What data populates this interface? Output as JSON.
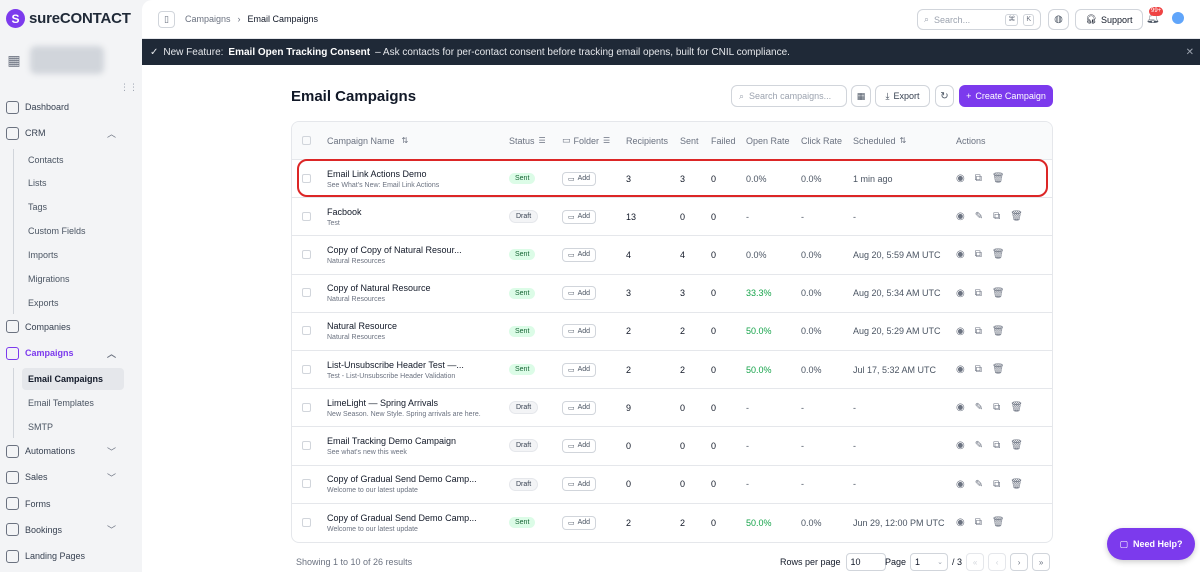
{
  "brand": {
    "logo_letter": "S",
    "name_bold": "sure",
    "name_rest": "CONTACT"
  },
  "nav": {
    "dashboard": "Dashboard",
    "crm": "CRM",
    "crm_items": [
      "Contacts",
      "Lists",
      "Tags",
      "Custom Fields",
      "Imports",
      "Migrations",
      "Exports"
    ],
    "companies": "Companies",
    "campaigns": "Campaigns",
    "campaign_items": [
      "Email Campaigns",
      "Email Templates",
      "SMTP"
    ],
    "automations": "Automations",
    "sales": "Sales",
    "forms": "Forms",
    "bookings": "Bookings",
    "landing_pages": "Landing Pages"
  },
  "topbar": {
    "crumb_1": "Campaigns",
    "crumb_sep": "›",
    "crumb_2": "Email Campaigns",
    "search_placeholder": "Search...",
    "search_key_1": "⌘",
    "search_key_2": "K",
    "support": "Support",
    "notif_badge": "99+"
  },
  "banner": {
    "label": "New Feature:",
    "title": "Email Open Tracking Consent",
    "text": "– Ask contacts for per-contact consent before tracking email opens, built for CNIL compliance."
  },
  "page": {
    "title": "Email Campaigns",
    "search_placeholder": "Search campaigns...",
    "export": "Export",
    "create": "Create Campaign"
  },
  "table": {
    "headers": {
      "name": "Campaign Name",
      "status": "Status",
      "folder": "Folder",
      "recipients": "Recipients",
      "sent": "Sent",
      "failed": "Failed",
      "open_rate": "Open Rate",
      "click_rate": "Click Rate",
      "scheduled": "Scheduled",
      "actions": "Actions"
    },
    "folder_add": "Add",
    "rows": [
      {
        "name": "Email Link Actions Demo",
        "sub": "See What's New: Email Link Actions",
        "status": "Sent",
        "recipients": "3",
        "sent": "3",
        "failed": "0",
        "open": "0.0%",
        "click": "0.0%",
        "scheduled": "1 min ago"
      },
      {
        "name": "Facbook",
        "sub": "Test",
        "status": "Draft",
        "recipients": "13",
        "sent": "0",
        "failed": "0",
        "open": "-",
        "click": "-",
        "scheduled": "-"
      },
      {
        "name": "Copy of Copy of Natural Resour...",
        "sub": "Natural Resources",
        "status": "Sent",
        "recipients": "4",
        "sent": "4",
        "failed": "0",
        "open": "0.0%",
        "click": "0.0%",
        "scheduled": "Aug 20, 5:59 AM UTC"
      },
      {
        "name": "Copy of Natural Resource",
        "sub": "Natural Resources",
        "status": "Sent",
        "recipients": "3",
        "sent": "3",
        "failed": "0",
        "open": "33.3%",
        "click": "0.0%",
        "scheduled": "Aug 20, 5:34 AM UTC"
      },
      {
        "name": "Natural Resource",
        "sub": "Natural Resources",
        "status": "Sent",
        "recipients": "2",
        "sent": "2",
        "failed": "0",
        "open": "50.0%",
        "click": "0.0%",
        "scheduled": "Aug 20, 5:29 AM UTC"
      },
      {
        "name": "List-Unsubscribe Header Test —...",
        "sub": "Test - List-Unsubscribe Header Validation",
        "status": "Sent",
        "recipients": "2",
        "sent": "2",
        "failed": "0",
        "open": "50.0%",
        "click": "0.0%",
        "scheduled": "Jul 17, 5:32 AM UTC"
      },
      {
        "name": "LimeLight — Spring Arrivals",
        "sub": "New Season. New Style. Spring arrivals are here.",
        "status": "Draft",
        "recipients": "9",
        "sent": "0",
        "failed": "0",
        "open": "-",
        "click": "-",
        "scheduled": "-"
      },
      {
        "name": "Email Tracking Demo Campaign",
        "sub": "See what's new this week",
        "status": "Draft",
        "recipients": "0",
        "sent": "0",
        "failed": "0",
        "open": "-",
        "click": "-",
        "scheduled": "-"
      },
      {
        "name": "Copy of Gradual Send Demo Camp...",
        "sub": "Welcome to our latest update",
        "status": "Draft",
        "recipients": "0",
        "sent": "0",
        "failed": "0",
        "open": "-",
        "click": "-",
        "scheduled": "-"
      },
      {
        "name": "Copy of Gradual Send Demo Camp...",
        "sub": "Welcome to our latest update",
        "status": "Sent",
        "recipients": "2",
        "sent": "2",
        "failed": "0",
        "open": "50.0%",
        "click": "0.0%",
        "scheduled": "Jun 29, 12:00 PM UTC"
      }
    ]
  },
  "footer": {
    "showing": "Showing 1 to 10 of 26 results",
    "rows_per_page_label": "Rows per page",
    "rows_per_page": "10",
    "page_label": "Page",
    "page": "1",
    "of_pages": "/ 3"
  },
  "help": "Need Help?",
  "colors": {
    "accent": "#7c3aed",
    "banner": "#1f2937",
    "sent_bg": "#dcfce7",
    "green": "#16a34a",
    "highlight": "#dc2626"
  }
}
